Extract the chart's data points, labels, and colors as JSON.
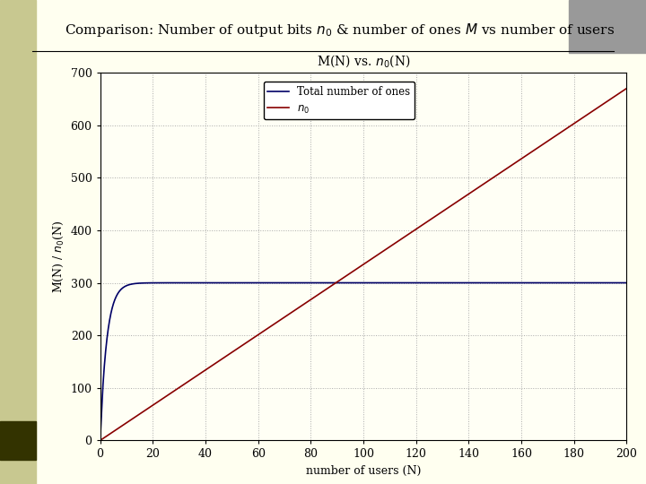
{
  "title_slide": "Comparison: Number of output bits $n_0$ & number of ones $M$ vs number of users",
  "plot_title": "M(N) vs. $n_0$(N)",
  "xlabel": "number of users (N)",
  "ylabel": "M(N) / $n_0$(N)",
  "xlim": [
    0,
    200
  ],
  "ylim": [
    0,
    700
  ],
  "yticks": [
    0,
    100,
    200,
    300,
    400,
    500,
    600,
    700
  ],
  "xticks": [
    0,
    20,
    40,
    60,
    80,
    100,
    120,
    140,
    160,
    180,
    200
  ],
  "M_max": 300,
  "n0_slope": 3.35,
  "line_color_M": "#000066",
  "line_color_n0": "#880000",
  "legend_label_M": "Total number of ones",
  "legend_label_n0": "$n_0$",
  "plot_bg_color": "#FFFFF5",
  "slide_bg_color": "#FFFFF0",
  "grid_color": "#AAAAAA",
  "title_fontsize": 11,
  "axis_fontsize": 9,
  "plot_title_fontsize": 10
}
